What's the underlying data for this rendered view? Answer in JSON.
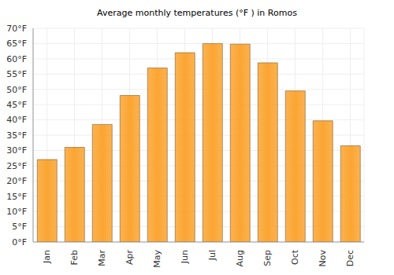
{
  "chart_data": {
    "type": "bar",
    "title": "Average monthly temperatures (°F ) in Romos",
    "categories": [
      "Jan",
      "Feb",
      "Mar",
      "Apr",
      "May",
      "Jun",
      "Jul",
      "Aug",
      "Sep",
      "Oct",
      "Nov",
      "Dec"
    ],
    "values": [
      27,
      31,
      38.5,
      48,
      57,
      62,
      65,
      64.8,
      58.7,
      49.5,
      39.7,
      31.5
    ],
    "color": "#fba532",
    "ylim": [
      0,
      70
    ],
    "yticks": [
      {
        "value": 0,
        "label": "0°F"
      },
      {
        "value": 5,
        "label": "5°F"
      },
      {
        "value": 10,
        "label": "10°F"
      },
      {
        "value": 15,
        "label": "15°F"
      },
      {
        "value": 20,
        "label": "20°F"
      },
      {
        "value": 25,
        "label": "25°F"
      },
      {
        "value": 30,
        "label": "30°F"
      },
      {
        "value": 35,
        "label": "35°F"
      },
      {
        "value": 40,
        "label": "40°F"
      },
      {
        "value": 45,
        "label": "45°F"
      },
      {
        "value": 50,
        "label": "50°F"
      },
      {
        "value": 55,
        "label": "55°F"
      },
      {
        "value": 60,
        "label": "60°F"
      },
      {
        "value": 65,
        "label": "65°F"
      },
      {
        "value": 70,
        "label": "70°F"
      }
    ],
    "grid": true
  }
}
